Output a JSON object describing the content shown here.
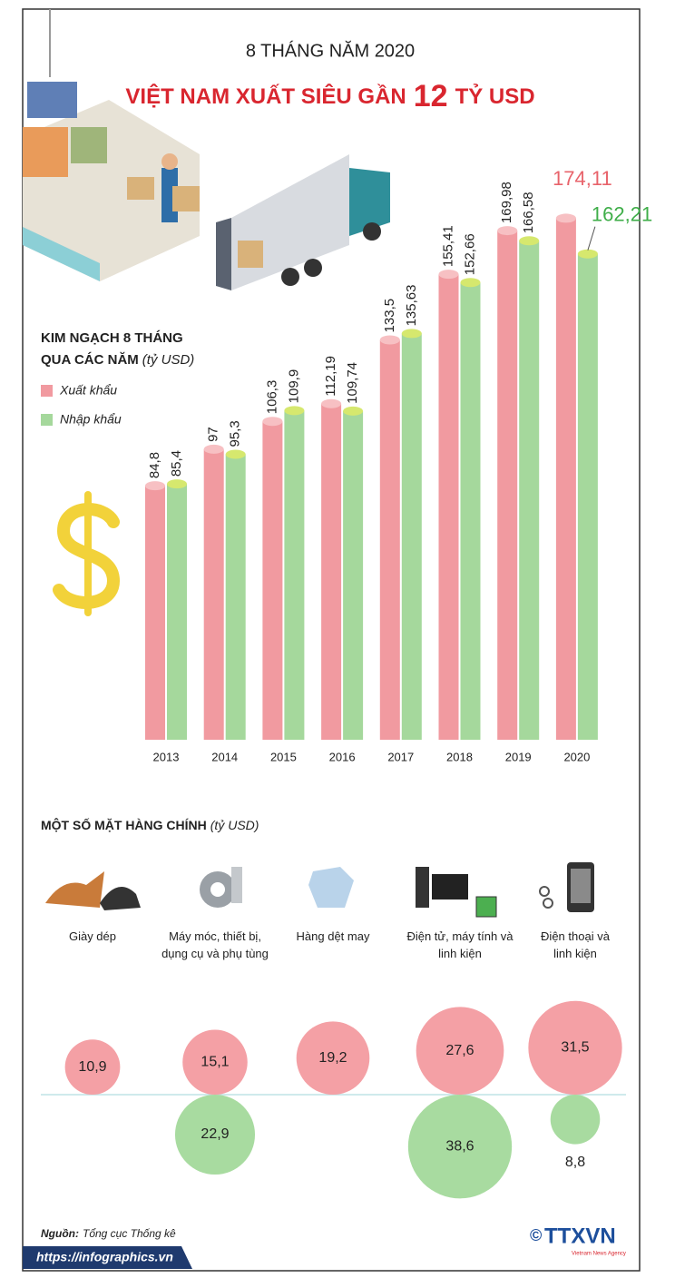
{
  "header": {
    "line1": "8 THÁNG NĂM 2020",
    "line2_pre": "VIỆT NAM XUẤT SIÊU GẦN",
    "line2_highlight": "12",
    "line2_post": "TỶ USD"
  },
  "chart_data": [
    {
      "type": "bar",
      "title": "KIM NGẠCH 8 THÁNG",
      "subtitle": "QUA CÁC NĂM",
      "unit": "(tỷ USD)",
      "categories": [
        "2013",
        "2014",
        "2015",
        "2016",
        "2017",
        "2018",
        "2019",
        "2020"
      ],
      "ylim": [
        0,
        180
      ],
      "series": [
        {
          "name": "Xuất khẩu",
          "color": "#f19aa0",
          "cap_color": "#f7c0c3",
          "highlight_color": "#e8636b",
          "values": [
            84.8,
            97,
            106.3,
            112.19,
            133.5,
            155.41,
            169.98,
            174.11
          ],
          "value_labels": [
            "84,8",
            "97",
            "106,3",
            "112,19",
            "133,5",
            "155,41",
            "169,98",
            "174,11"
          ]
        },
        {
          "name": "Nhập khẩu",
          "color": "#a5d89c",
          "cap_color": "#d6e86e",
          "highlight_color": "#3fae49",
          "values": [
            85.4,
            95.3,
            109.9,
            109.74,
            135.63,
            152.66,
            166.58,
            162.21
          ],
          "value_labels": [
            "85,4",
            "95,3",
            "109,9",
            "109,74",
            "135,63",
            "152,66",
            "166,58",
            "162,21"
          ]
        }
      ]
    },
    {
      "type": "bubble",
      "title": "MỘT SỐ MẶT HÀNG CHÍNH",
      "unit": "(tỷ USD)",
      "categories": [
        "Giày dép",
        "Máy móc, thiết bị, dụng cụ và phụ tùng",
        "Hàng dệt may",
        "Điện tử, máy tính và linh kiện",
        "Điện thoại và linh kiện"
      ],
      "series": [
        {
          "color": "#f4a0a5",
          "values": [
            10.9,
            15.1,
            19.2,
            27.6,
            31.5
          ],
          "value_labels": [
            "10,9",
            "15,1",
            "19,2",
            "27,6",
            "31,5"
          ]
        },
        {
          "color": "#a8dba0",
          "values": [
            null,
            22.9,
            null,
            38.6,
            8.8
          ],
          "value_labels": [
            null,
            "22,9",
            null,
            "38,6",
            "8,8"
          ]
        }
      ]
    }
  ],
  "footer": {
    "source_label": "Nguồn:",
    "source": "Tổng cục Thống kê",
    "url": "https://infographics.vn",
    "copyright": "©",
    "logo": "TTXVN",
    "logo_sub": "Vietnam News Agency"
  }
}
